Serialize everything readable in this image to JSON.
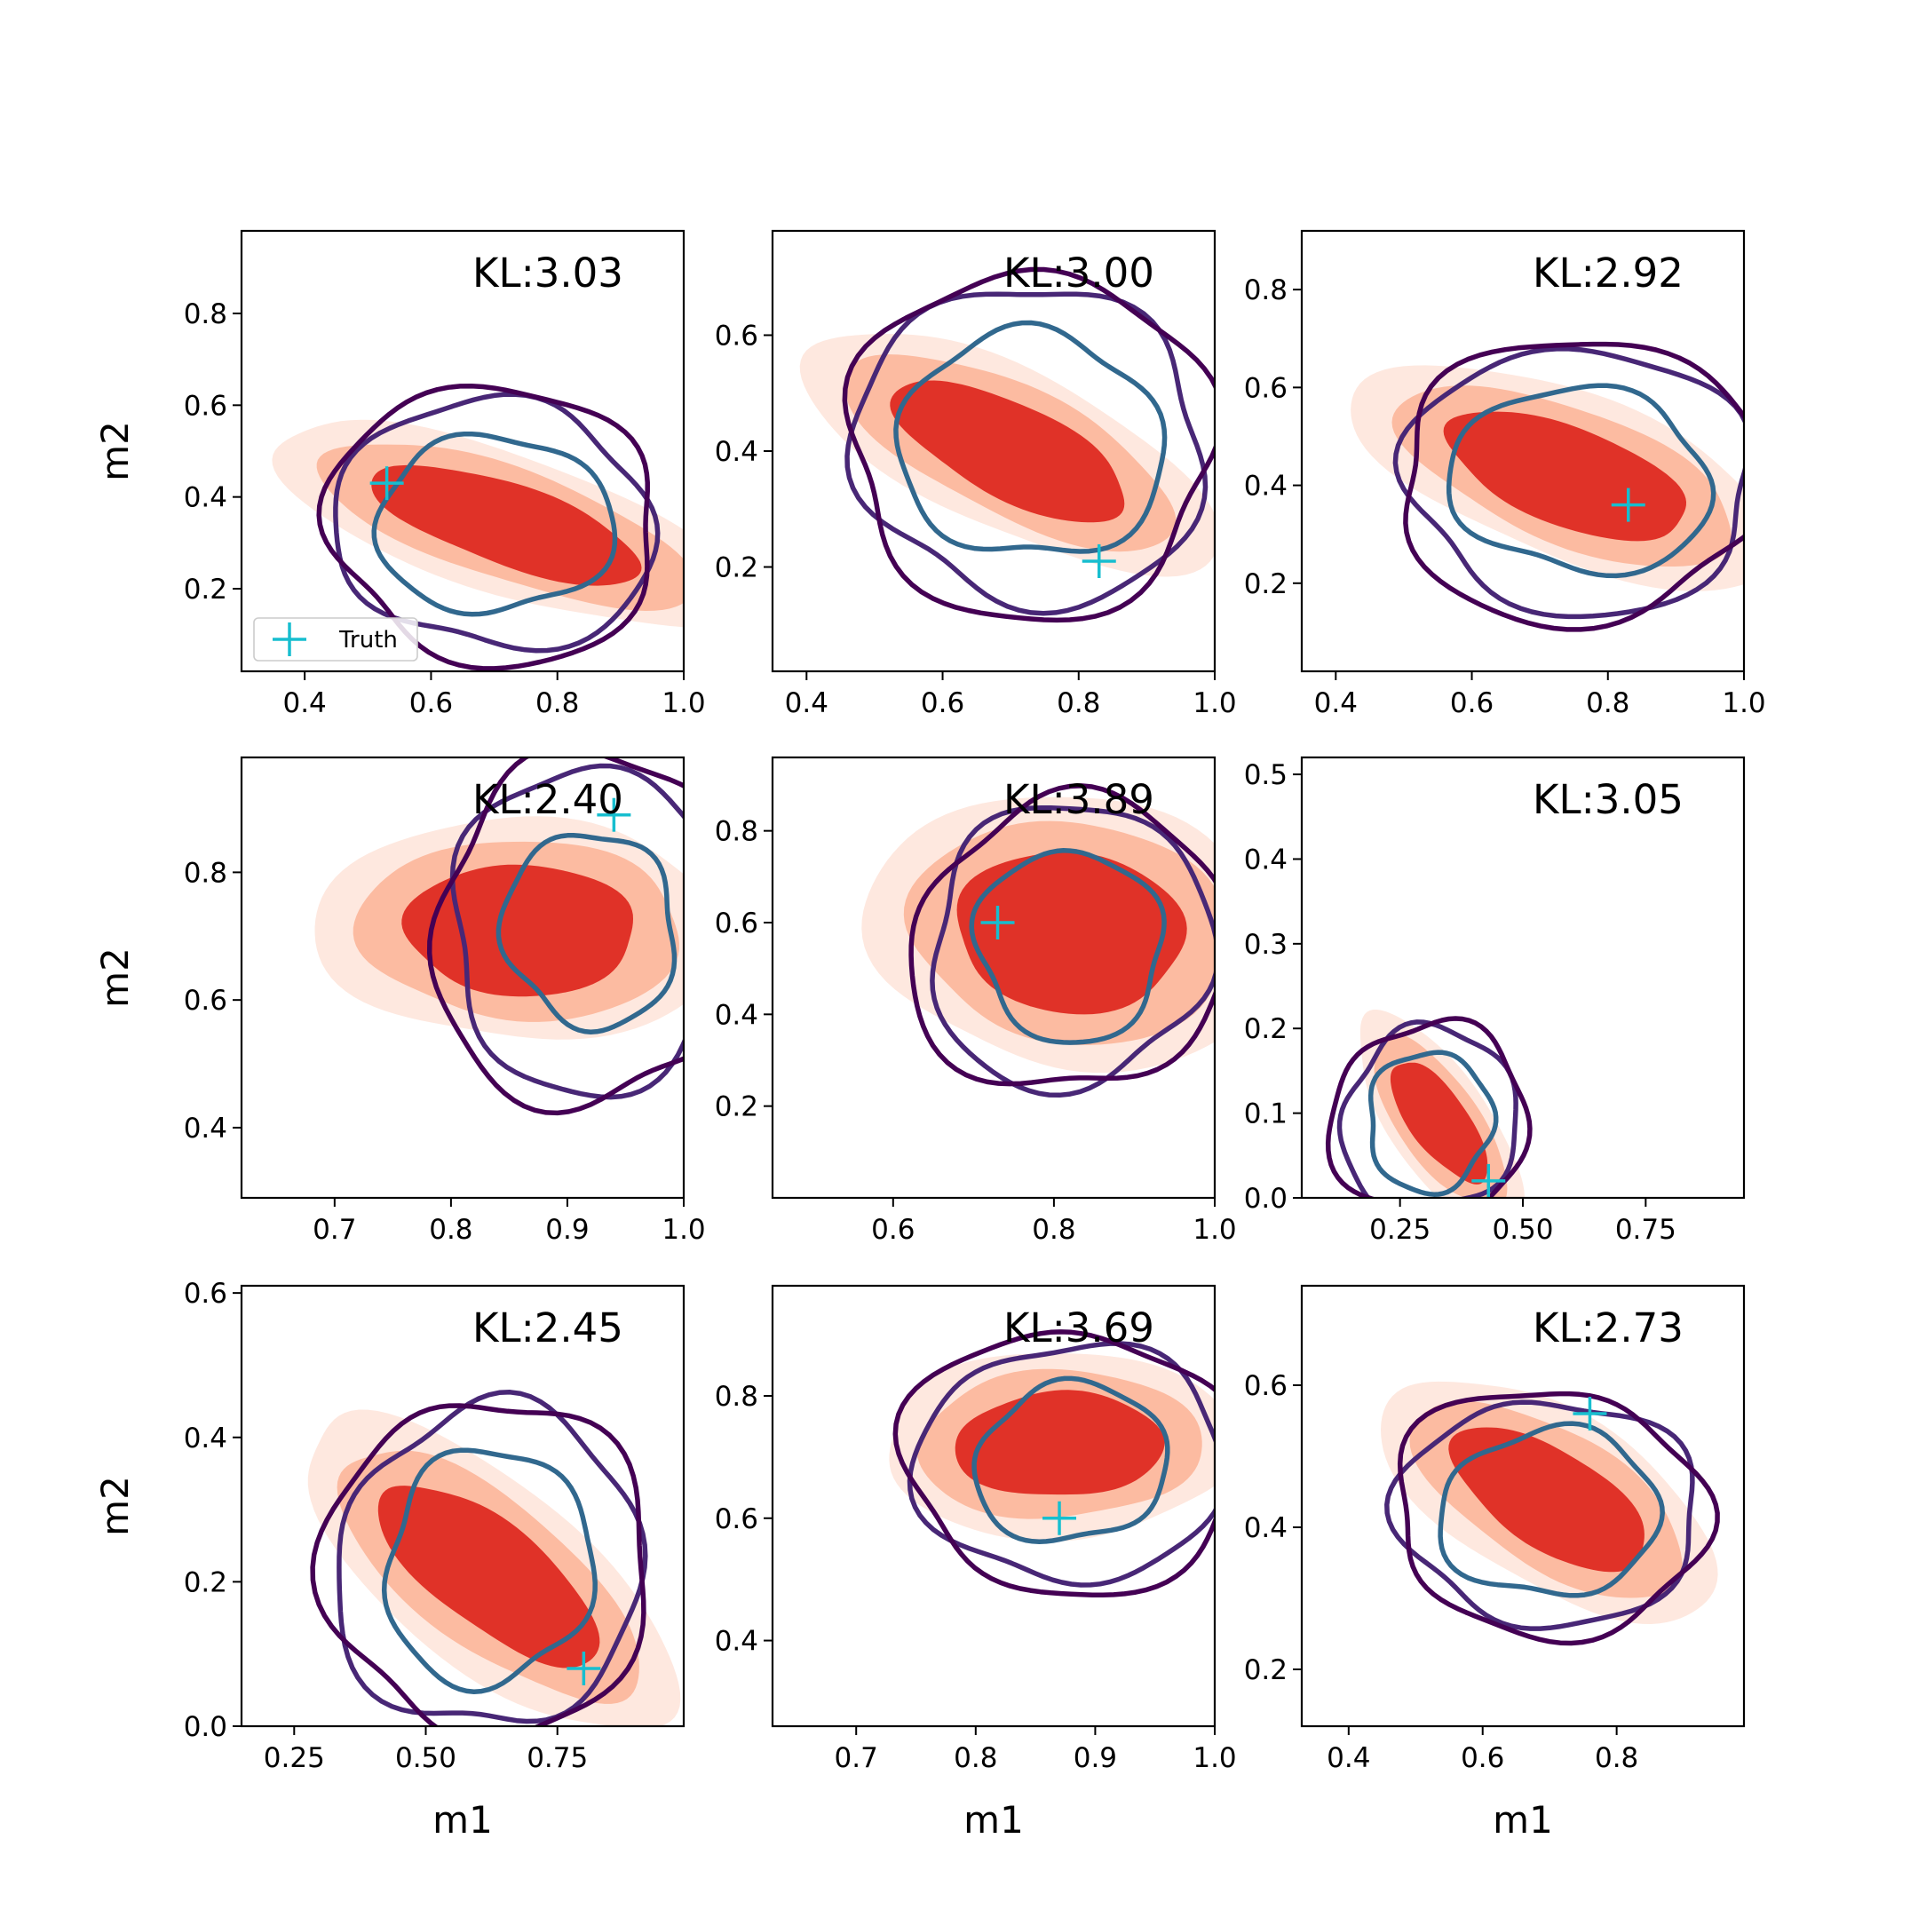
{
  "figure": {
    "xlabel": "m1",
    "ylabel": "m2",
    "legend": {
      "label": "Truth",
      "placement": "lower-left",
      "panel": 0
    }
  },
  "colors": {
    "kde_outer": "#fee8df",
    "kde_mid": "#fcbba1",
    "kde_inner": "#e03228",
    "contour_outer": "#440154",
    "contour_mid": "#482776",
    "contour_inner": "#31688e",
    "truth": "#17becf"
  },
  "chart_data": [
    {
      "type": "contour",
      "annotation": "KL:3.03",
      "xlim": [
        0.3,
        1.0
      ],
      "ylim": [
        0.02,
        0.98
      ],
      "xticks": [
        0.4,
        0.6,
        0.8,
        1.0
      ],
      "xtick_labels": [
        "0.4",
        "0.6",
        "0.8",
        "1.0"
      ],
      "yticks": [
        0.2,
        0.4,
        0.6,
        0.8
      ],
      "ytick_labels": [
        "0.2",
        "0.4",
        "0.6",
        "0.8"
      ],
      "truth": [
        0.53,
        0.43
      ],
      "kde": {
        "axis": [
          0.72,
          0.34
        ],
        "half": [
          0.32,
          0.12
        ],
        "tilt": -28,
        "lean": [
          0.02,
          0.0
        ]
      },
      "contours": {
        "center": [
          0.7,
          0.34
        ],
        "r": [
          0.18,
          0.2
        ],
        "scale": [
          1.38,
          1.48
        ],
        "wobble": [
          0.04,
          0.04,
          0.05
        ]
      },
      "show_xlabel": false,
      "show_ylabel": true
    },
    {
      "type": "contour",
      "annotation": "KL:3.00",
      "xlim": [
        0.35,
        1.0
      ],
      "ylim": [
        0.02,
        0.78
      ],
      "xticks": [
        0.4,
        0.6,
        0.8,
        1.0
      ],
      "xtick_labels": [
        "0.4",
        "0.6",
        "0.8",
        "1.0"
      ],
      "yticks": [
        0.2,
        0.4,
        0.6
      ],
      "ytick_labels": [
        "0.2",
        "0.4",
        "0.6"
      ],
      "truth": [
        0.83,
        0.21
      ],
      "kde": {
        "axis": [
          0.7,
          0.4
        ],
        "half": [
          0.27,
          0.11
        ],
        "tilt": -30,
        "lean": [
          0.0,
          0.0
        ]
      },
      "contours": {
        "center": [
          0.73,
          0.41
        ],
        "r": [
          0.19,
          0.2
        ],
        "scale": [
          1.36,
          1.45
        ],
        "wobble": [
          0.04,
          0.05,
          0.04
        ]
      },
      "show_xlabel": false,
      "show_ylabel": false
    },
    {
      "type": "contour",
      "annotation": "KL:2.92",
      "xlim": [
        0.35,
        1.0
      ],
      "ylim": [
        0.02,
        0.92
      ],
      "xticks": [
        0.4,
        0.6,
        0.8,
        1.0
      ],
      "xtick_labels": [
        "0.4",
        "0.6",
        "0.8",
        "1.0"
      ],
      "yticks": [
        0.2,
        0.4,
        0.6,
        0.8
      ],
      "ytick_labels": [
        "0.2",
        "0.4",
        "0.6",
        "0.8"
      ],
      "truth": [
        0.83,
        0.36
      ],
      "kde": {
        "axis": [
          0.74,
          0.42
        ],
        "half": [
          0.28,
          0.13
        ],
        "tilt": -30,
        "lean": [
          0.0,
          0.0
        ]
      },
      "contours": {
        "center": [
          0.76,
          0.41
        ],
        "r": [
          0.19,
          0.19
        ],
        "scale": [
          1.38,
          1.47
        ],
        "wobble": [
          0.05,
          0.04,
          0.05
        ]
      },
      "show_xlabel": false,
      "show_ylabel": false
    },
    {
      "type": "contour",
      "annotation": "KL:2.40",
      "xlim": [
        0.62,
        1.0
      ],
      "ylim": [
        0.29,
        0.98
      ],
      "xticks": [
        0.7,
        0.8,
        0.9,
        1.0
      ],
      "xtick_labels": [
        "0.7",
        "0.8",
        "0.9",
        "1.0"
      ],
      "yticks": [
        0.4,
        0.6,
        0.8
      ],
      "ytick_labels": [
        "0.4",
        "0.6",
        "0.8"
      ],
      "truth": [
        0.94,
        0.89
      ],
      "kde": {
        "axis": [
          0.86,
          0.71
        ],
        "half": [
          0.14,
          0.14
        ],
        "tilt": 10,
        "lean": [
          0.0,
          0.0
        ]
      },
      "contours": {
        "center": [
          0.92,
          0.71
        ],
        "r": [
          0.075,
          0.15
        ],
        "scale": [
          1.65,
          1.82
        ],
        "wobble": [
          0.04,
          0.05,
          0.04
        ]
      },
      "show_xlabel": false,
      "show_ylabel": true
    },
    {
      "type": "contour",
      "annotation": "KL:3.89",
      "xlim": [
        0.45,
        1.0
      ],
      "ylim": [
        0.0,
        0.96
      ],
      "xticks": [
        0.6,
        0.8,
        1.0
      ],
      "xtick_labels": [
        "0.6",
        "0.8",
        "1.0"
      ],
      "yticks": [
        0.2,
        0.4,
        0.6,
        0.8
      ],
      "ytick_labels": [
        "0.2",
        "0.4",
        "0.6",
        "0.8"
      ],
      "truth": [
        0.73,
        0.6
      ],
      "kde": {
        "axis": [
          0.82,
          0.58
        ],
        "half": [
          0.2,
          0.24
        ],
        "tilt": 12,
        "lean": [
          0.0,
          0.0
        ]
      },
      "contours": {
        "center": [
          0.82,
          0.55
        ],
        "r": [
          0.12,
          0.2
        ],
        "scale": [
          1.5,
          1.62
        ],
        "wobble": [
          0.05,
          0.04,
          0.05
        ]
      },
      "show_xlabel": false,
      "show_ylabel": false
    },
    {
      "type": "contour",
      "annotation": "KL:3.05",
      "xlim": [
        0.05,
        0.95
      ],
      "ylim": [
        0.0,
        0.52
      ],
      "xticks": [
        0.25,
        0.5,
        0.75
      ],
      "xtick_labels": [
        "0.25",
        "0.50",
        "0.75"
      ],
      "yticks": [
        0.0,
        0.1,
        0.2,
        0.3,
        0.4,
        0.5
      ],
      "ytick_labels": [
        "0.0",
        "0.1",
        "0.2",
        "0.3",
        "0.4",
        "0.5"
      ],
      "truth": [
        0.43,
        0.02
      ],
      "kde": {
        "axis": [
          0.33,
          0.09
        ],
        "half": [
          0.16,
          0.06
        ],
        "tilt": -34,
        "lean": [
          0.0,
          0.0
        ]
      },
      "contours": {
        "center": [
          0.31,
          0.09
        ],
        "r": [
          0.13,
          0.08
        ],
        "scale": [
          1.38,
          1.5
        ],
        "wobble": [
          0.04,
          0.05,
          0.04
        ]
      },
      "show_xlabel": false,
      "show_ylabel": false
    },
    {
      "type": "contour",
      "annotation": "KL:2.45",
      "xlim": [
        0.15,
        0.99
      ],
      "ylim": [
        0.0,
        0.61
      ],
      "xticks": [
        0.25,
        0.5,
        0.75
      ],
      "xtick_labels": [
        "0.25",
        "0.50",
        "0.75"
      ],
      "yticks": [
        0.0,
        0.2,
        0.4,
        0.6
      ],
      "ytick_labels": [
        "0.0",
        "0.2",
        "0.4",
        "0.6"
      ],
      "truth": [
        0.8,
        0.08
      ],
      "kde": {
        "axis": [
          0.62,
          0.21
        ],
        "half": [
          0.32,
          0.11
        ],
        "tilt": -28,
        "lean": [
          0.0,
          0.0
        ]
      },
      "contours": {
        "center": [
          0.62,
          0.22
        ],
        "r": [
          0.2,
          0.16
        ],
        "scale": [
          1.42,
          1.5
        ],
        "wobble": [
          0.04,
          0.05,
          0.04
        ]
      },
      "show_xlabel": true,
      "show_ylabel": true
    },
    {
      "type": "contour",
      "annotation": "KL:3.69",
      "xlim": [
        0.63,
        1.0
      ],
      "ylim": [
        0.26,
        0.98
      ],
      "xticks": [
        0.7,
        0.8,
        0.9,
        1.0
      ],
      "xtick_labels": [
        "0.7",
        "0.8",
        "0.9",
        "1.0"
      ],
      "yticks": [
        0.4,
        0.6,
        0.8
      ],
      "ytick_labels": [
        "0.4",
        "0.6",
        "0.8"
      ],
      "truth": [
        0.87,
        0.6
      ],
      "kde": {
        "axis": [
          0.87,
          0.72
        ],
        "half": [
          0.12,
          0.12
        ],
        "tilt": 14,
        "lean": [
          0.0,
          0.0
        ]
      },
      "contours": {
        "center": [
          0.88,
          0.69
        ],
        "r": [
          0.08,
          0.13
        ],
        "scale": [
          1.55,
          1.7
        ],
        "wobble": [
          0.04,
          0.04,
          0.05
        ]
      },
      "show_xlabel": true,
      "show_ylabel": false
    },
    {
      "type": "contour",
      "annotation": "KL:2.73",
      "xlim": [
        0.33,
        0.99
      ],
      "ylim": [
        0.12,
        0.74
      ],
      "xticks": [
        0.4,
        0.6,
        0.8
      ],
      "xtick_labels": [
        "0.4",
        "0.6",
        "0.8"
      ],
      "yticks": [
        0.2,
        0.4,
        0.6
      ],
      "ytick_labels": [
        "0.2",
        "0.4",
        "0.6"
      ],
      "truth": [
        0.76,
        0.56
      ],
      "kde": {
        "axis": [
          0.7,
          0.44
        ],
        "half": [
          0.22,
          0.1
        ],
        "tilt": -30,
        "lean": [
          0.0,
          0.0
        ]
      },
      "contours": {
        "center": [
          0.7,
          0.42
        ],
        "r": [
          0.16,
          0.12
        ],
        "scale": [
          1.36,
          1.45
        ],
        "wobble": [
          0.04,
          0.05,
          0.04
        ]
      },
      "show_xlabel": true,
      "show_ylabel": false
    }
  ]
}
